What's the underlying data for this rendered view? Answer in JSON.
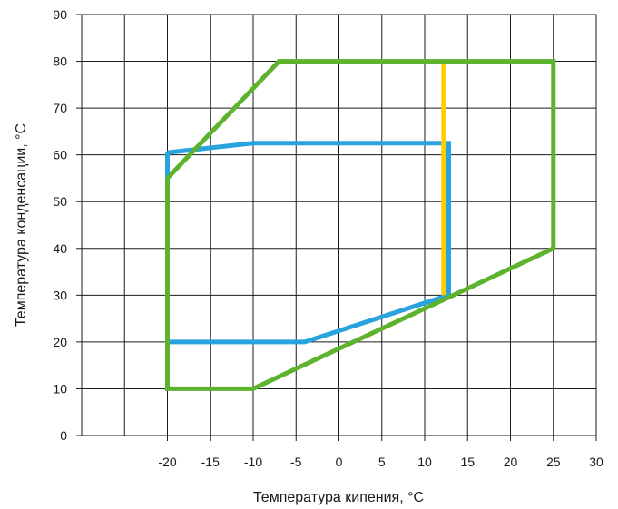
{
  "chart_data": {
    "type": "line",
    "title": "",
    "xlabel": "Температура кипения, °C",
    "ylabel": "Температура конденсации, °C",
    "xlim": [
      -30,
      30
    ],
    "ylim": [
      0,
      90
    ],
    "x_ticks": [
      -20,
      -15,
      -10,
      -5,
      0,
      5,
      10,
      15,
      20,
      25,
      30
    ],
    "y_ticks": [
      0,
      10,
      20,
      30,
      40,
      50,
      60,
      70,
      80,
      90
    ],
    "grid": true,
    "legend": "none",
    "series": [
      {
        "color": "#29a3dd",
        "points": [
          [
            -20,
            60.5
          ],
          [
            -10,
            62.5
          ],
          [
            12.8,
            62.5
          ],
          [
            12.8,
            30
          ],
          [
            -4,
            20
          ],
          [
            -20,
            20
          ],
          [
            -20,
            60.5
          ]
        ]
      },
      {
        "color": "#ffcc00",
        "points": [
          [
            12.2,
            80
          ],
          [
            12.2,
            30
          ]
        ]
      },
      {
        "color": "#5db32e",
        "points": [
          [
            -20,
            55
          ],
          [
            -7,
            80
          ],
          [
            25,
            80
          ],
          [
            25,
            40
          ],
          [
            -10,
            10
          ],
          [
            -20,
            10
          ],
          [
            -20,
            55
          ]
        ]
      }
    ]
  }
}
